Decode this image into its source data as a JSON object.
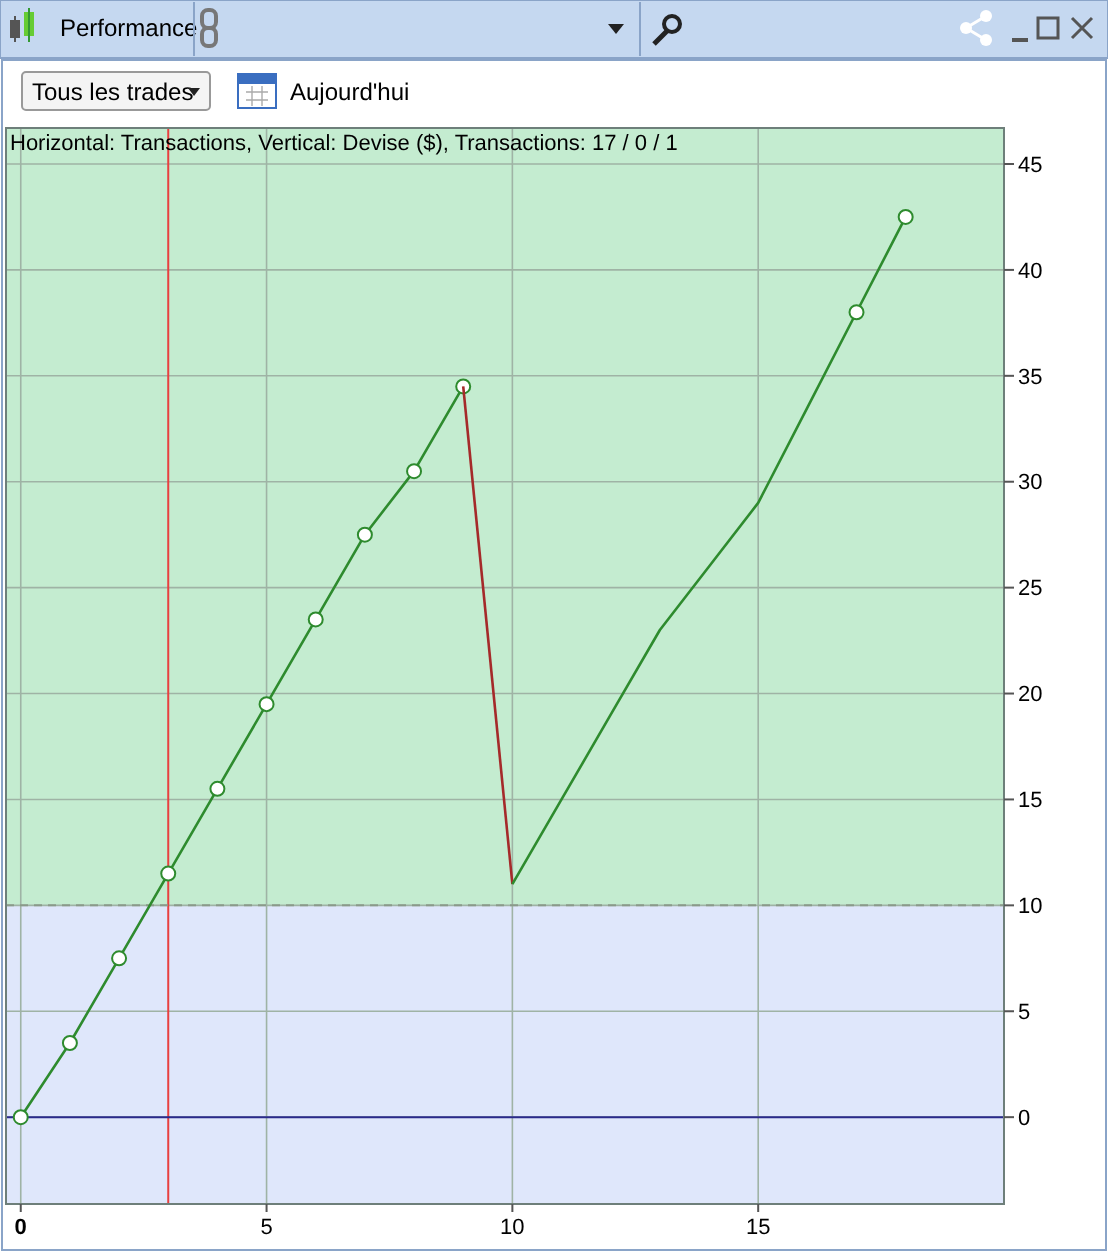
{
  "chart_data": {
    "type": "line",
    "title": "Horizontal: Transactions, Vertical: Devise ($), Transactions: 17 / 0 / 1",
    "annotations": [
      "Performance",
      "Tous les trades",
      "Aujourd'hui"
    ],
    "series": [
      {
        "color": "#2e8b2e",
        "marker": "circle",
        "x": [
          0,
          1,
          2,
          3,
          4,
          5,
          6,
          7,
          8,
          9
        ],
        "values": [
          0,
          3.5,
          7.5,
          11.5,
          15.5,
          19.5,
          23.5,
          27.5,
          30.5,
          34.5
        ]
      },
      {
        "color": "#a52a2a",
        "marker": "none",
        "x": [
          9,
          10
        ],
        "values": [
          34.5,
          11
        ]
      },
      {
        "color": "#2e8b2e",
        "marker": "none",
        "x": [
          10,
          11,
          12,
          13,
          14,
          15,
          16,
          17,
          18
        ],
        "values": [
          11,
          15,
          19,
          23,
          26,
          29,
          33.5,
          38,
          42.5
        ]
      },
      {
        "type": "scatter",
        "color": "#2e8b2e",
        "marker": "circle",
        "x": [
          17,
          18
        ],
        "values": [
          38,
          42.5
        ]
      }
    ],
    "xlim": [
      -0.3,
      20
    ],
    "xticks": [
      {
        "value": 0,
        "label": "0"
      },
      5,
      10,
      15
    ],
    "ylim": [
      -4.1,
      46.7
    ],
    "yticks": [
      0,
      5,
      10,
      15,
      20,
      25,
      30,
      35,
      40,
      45
    ],
    "grid": true,
    "bands": [
      {
        "axis": "y",
        "from": 10,
        "to": 46.7,
        "color": "#c4ecd0"
      },
      {
        "axis": "y",
        "from": -4.1,
        "to": 10,
        "color": "#dfe7fb"
      }
    ],
    "ref_lines": [
      {
        "axis": "x",
        "value": 3,
        "color": "#e84040"
      },
      {
        "axis": "y",
        "value": 0,
        "color": "#2a2a8c"
      },
      {
        "axis": "y",
        "value": 10,
        "color": "#8a9a8a",
        "line_style": "dashed"
      }
    ]
  }
}
